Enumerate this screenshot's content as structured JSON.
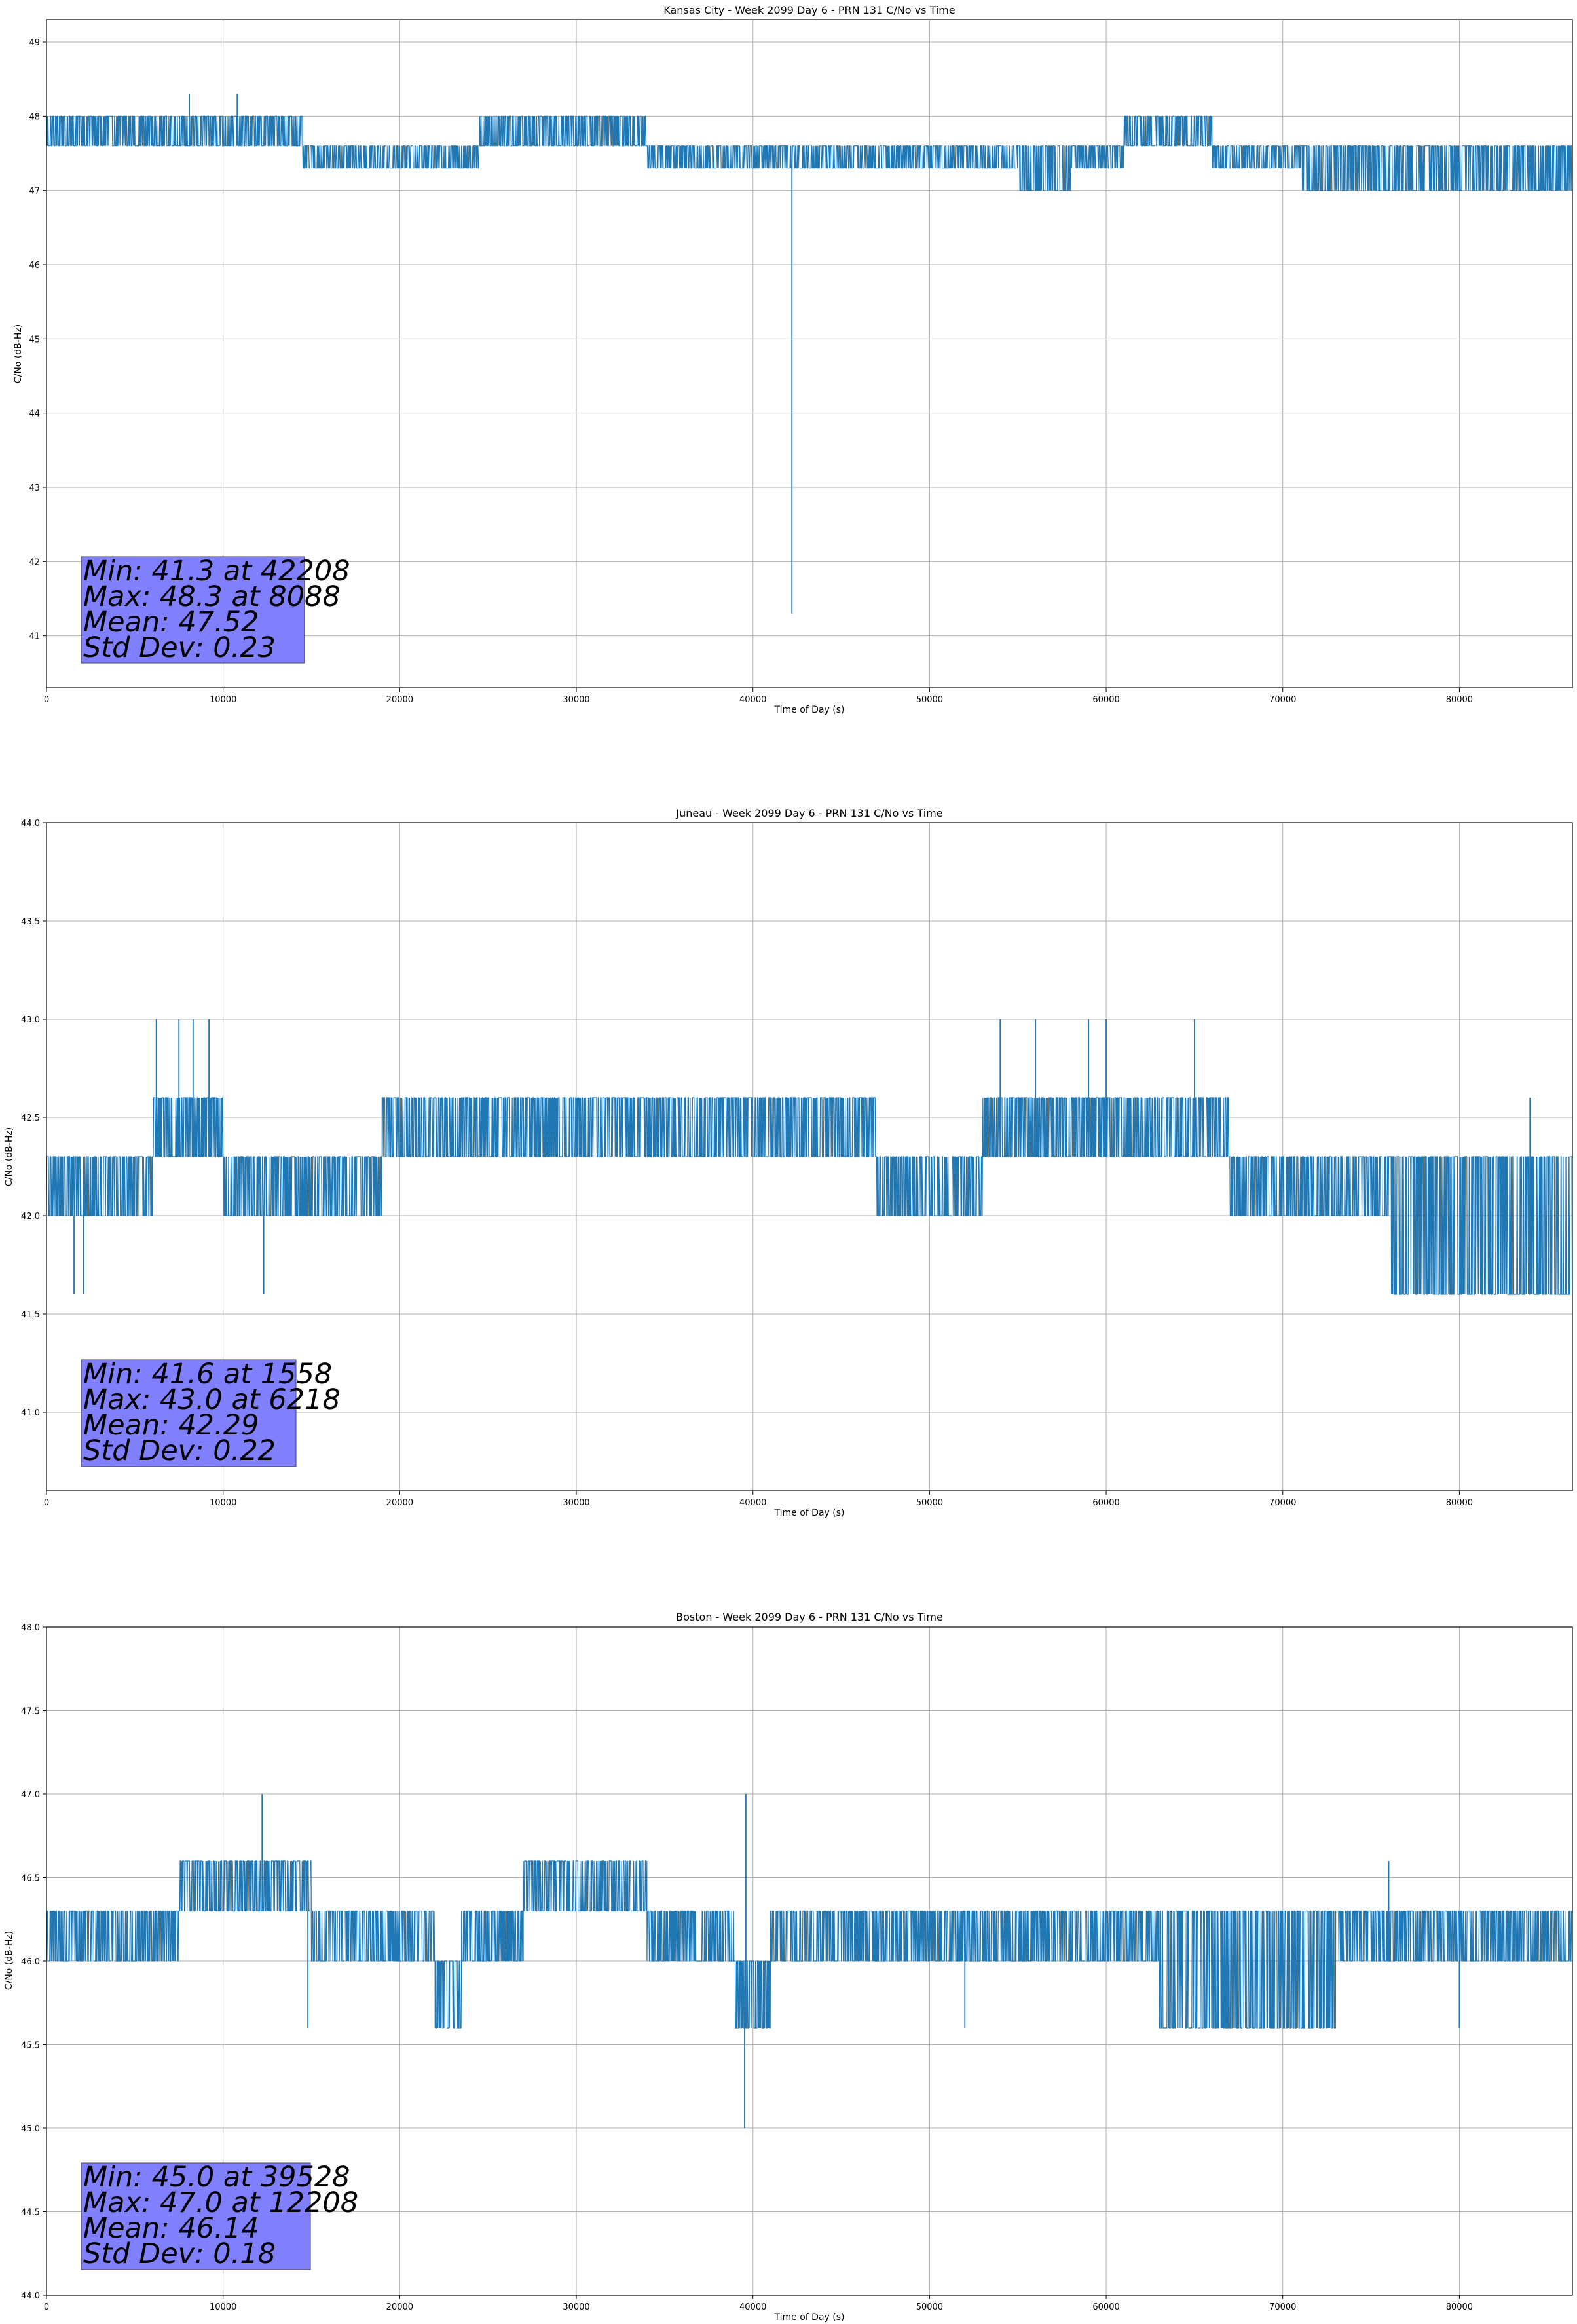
{
  "colors": {
    "series": "#1f77b4",
    "grid": "#b0b0b0",
    "stats_box": "#8080ff",
    "axes": "#000000"
  },
  "chart_data": [
    {
      "type": "line",
      "title": "Kansas City - Week 2099 Day 6 - PRN 131 C/No vs Time",
      "xlabel": "Time of Day (s)",
      "ylabel": "C/No (dB-Hz)",
      "xlim": [
        0,
        86400
      ],
      "ylim": [
        40.3,
        49.3
      ],
      "xticks": [
        0,
        10000,
        20000,
        30000,
        40000,
        50000,
        60000,
        70000,
        80000
      ],
      "yticks": [
        41,
        42,
        43,
        44,
        45,
        46,
        47,
        48,
        49
      ],
      "grid": true,
      "quantization": 0.33,
      "segments": [
        {
          "x": [
            0,
            14500
          ],
          "levels": [
            47.6,
            48.0
          ]
        },
        {
          "x": [
            14500,
            24500
          ],
          "levels": [
            47.3,
            47.6
          ]
        },
        {
          "x": [
            24500,
            34000
          ],
          "levels": [
            47.6,
            48.0
          ]
        },
        {
          "x": [
            34000,
            40000
          ],
          "levels": [
            47.3,
            47.6
          ]
        },
        {
          "x": [
            40000,
            55000
          ],
          "levels": [
            47.3,
            47.6
          ]
        },
        {
          "x": [
            55000,
            58000
          ],
          "levels": [
            47.0,
            47.6
          ]
        },
        {
          "x": [
            58000,
            61000
          ],
          "levels": [
            47.3,
            47.6
          ]
        },
        {
          "x": [
            61000,
            66000
          ],
          "levels": [
            47.6,
            48.0
          ]
        },
        {
          "x": [
            66000,
            71000
          ],
          "levels": [
            47.3,
            47.6
          ]
        },
        {
          "x": [
            71000,
            86400
          ],
          "levels": [
            47.0,
            47.6
          ]
        }
      ],
      "spikes": [
        [
          8088,
          48.3
        ],
        [
          10800,
          48.3
        ],
        [
          42208,
          41.3
        ]
      ],
      "stats": {
        "min": "Min: 41.3 at 42208",
        "max": "Max: 48.3 at 8088",
        "mean": "Mean: 47.52",
        "std": "Std Dev: 0.23"
      }
    },
    {
      "type": "line",
      "title": "Juneau - Week 2099 Day 6 - PRN 131 C/No vs Time",
      "xlabel": "Time of Day (s)",
      "ylabel": "C/No (dB-Hz)",
      "xlim": [
        0,
        86400
      ],
      "ylim": [
        40.6,
        44.0
      ],
      "xticks": [
        0,
        10000,
        20000,
        30000,
        40000,
        50000,
        60000,
        70000,
        80000
      ],
      "yticks": [
        41.0,
        41.5,
        42.0,
        42.5,
        43.0,
        43.5,
        44.0
      ],
      "grid": true,
      "quantization": 0.3,
      "segments": [
        {
          "x": [
            0,
            6000
          ],
          "levels": [
            42.0,
            42.3
          ]
        },
        {
          "x": [
            6000,
            10000
          ],
          "levels": [
            42.3,
            42.6
          ]
        },
        {
          "x": [
            10000,
            19000
          ],
          "levels": [
            42.0,
            42.3
          ]
        },
        {
          "x": [
            19000,
            47000
          ],
          "levels": [
            42.3,
            42.6
          ]
        },
        {
          "x": [
            47000,
            53000
          ],
          "levels": [
            42.0,
            42.3
          ]
        },
        {
          "x": [
            53000,
            67000
          ],
          "levels": [
            42.3,
            42.6
          ]
        },
        {
          "x": [
            67000,
            76000
          ],
          "levels": [
            42.0,
            42.3
          ]
        },
        {
          "x": [
            76000,
            86400
          ],
          "levels": [
            41.6,
            42.3
          ]
        }
      ],
      "spikes": [
        [
          1558,
          41.6
        ],
        [
          2100,
          41.6
        ],
        [
          6218,
          43.0
        ],
        [
          7500,
          43.0
        ],
        [
          8300,
          43.0
        ],
        [
          9200,
          43.0
        ],
        [
          12300,
          41.6
        ],
        [
          54000,
          43.0
        ],
        [
          56000,
          43.0
        ],
        [
          59000,
          43.0
        ],
        [
          60000,
          43.0
        ],
        [
          65000,
          43.0
        ],
        [
          84000,
          42.6
        ]
      ],
      "stats": {
        "min": "Min: 41.6 at 1558",
        "max": "Max: 43.0 at 6218",
        "mean": "Mean: 42.29",
        "std": "Std Dev: 0.22"
      }
    },
    {
      "type": "line",
      "title": "Boston - Week 2099 Day 6 - PRN 131 C/No vs Time",
      "xlabel": "Time of Day (s)",
      "ylabel": "C/No (dB-Hz)",
      "xlim": [
        0,
        86400
      ],
      "ylim": [
        44.0,
        48.0
      ],
      "xticks": [
        0,
        10000,
        20000,
        30000,
        40000,
        50000,
        60000,
        70000,
        80000
      ],
      "yticks": [
        44.0,
        44.5,
        45.0,
        45.5,
        46.0,
        46.5,
        47.0,
        47.5,
        48.0
      ],
      "grid": true,
      "quantization": 0.3,
      "segments": [
        {
          "x": [
            0,
            7500
          ],
          "levels": [
            46.0,
            46.3
          ]
        },
        {
          "x": [
            7500,
            15000
          ],
          "levels": [
            46.3,
            46.6
          ]
        },
        {
          "x": [
            15000,
            22000
          ],
          "levels": [
            46.0,
            46.3
          ]
        },
        {
          "x": [
            22000,
            23500
          ],
          "levels": [
            45.6,
            46.0
          ]
        },
        {
          "x": [
            23500,
            27000
          ],
          "levels": [
            46.0,
            46.3
          ]
        },
        {
          "x": [
            27000,
            34000
          ],
          "levels": [
            46.3,
            46.6
          ]
        },
        {
          "x": [
            34000,
            39000
          ],
          "levels": [
            46.0,
            46.3
          ]
        },
        {
          "x": [
            39000,
            41000
          ],
          "levels": [
            45.6,
            46.0
          ]
        },
        {
          "x": [
            41000,
            63000
          ],
          "levels": [
            46.0,
            46.3
          ]
        },
        {
          "x": [
            63000,
            73000
          ],
          "levels": [
            45.6,
            46.3
          ]
        },
        {
          "x": [
            73000,
            86400
          ],
          "levels": [
            46.0,
            46.3
          ]
        }
      ],
      "spikes": [
        [
          39528,
          45.0
        ],
        [
          12208,
          47.0
        ],
        [
          39600,
          47.0
        ],
        [
          76000,
          46.6
        ],
        [
          14800,
          45.6
        ],
        [
          52000,
          45.6
        ],
        [
          80000,
          45.6
        ]
      ],
      "stats": {
        "min": "Min: 45.0 at 39528",
        "max": "Max: 47.0 at 12208",
        "mean": "Mean: 46.14",
        "std": "Std Dev: 0.18"
      }
    }
  ]
}
